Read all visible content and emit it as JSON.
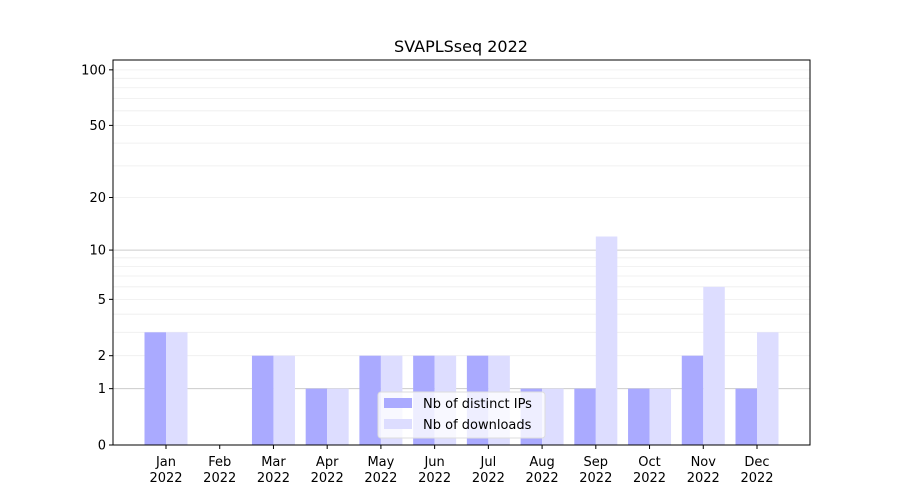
{
  "chart_data": {
    "type": "bar",
    "title": "SVAPLSseq 2022",
    "xlabel": "",
    "ylabel": "",
    "yscale": "log(1+x)",
    "ylim": [
      0,
      113
    ],
    "yticks": [
      0,
      1,
      2,
      5,
      10,
      20,
      50,
      100
    ],
    "categories": [
      "Jan\n2022",
      "Feb\n2022",
      "Mar\n2022",
      "Apr\n2022",
      "May\n2022",
      "Jun\n2022",
      "Jul\n2022",
      "Aug\n2022",
      "Sep\n2022",
      "Oct\n2022",
      "Nov\n2022",
      "Dec\n2022"
    ],
    "series": [
      {
        "name": "Nb of distinct IPs",
        "color": "#aaaaff",
        "values": [
          3,
          0,
          2,
          1,
          2,
          2,
          2,
          1,
          1,
          1,
          2,
          1
        ]
      },
      {
        "name": "Nb of downloads",
        "color": "#ddddff",
        "values": [
          3,
          0,
          2,
          1,
          2,
          2,
          2,
          1,
          12,
          1,
          6,
          3
        ]
      }
    ],
    "grid": true,
    "legend": "bottom-center"
  }
}
